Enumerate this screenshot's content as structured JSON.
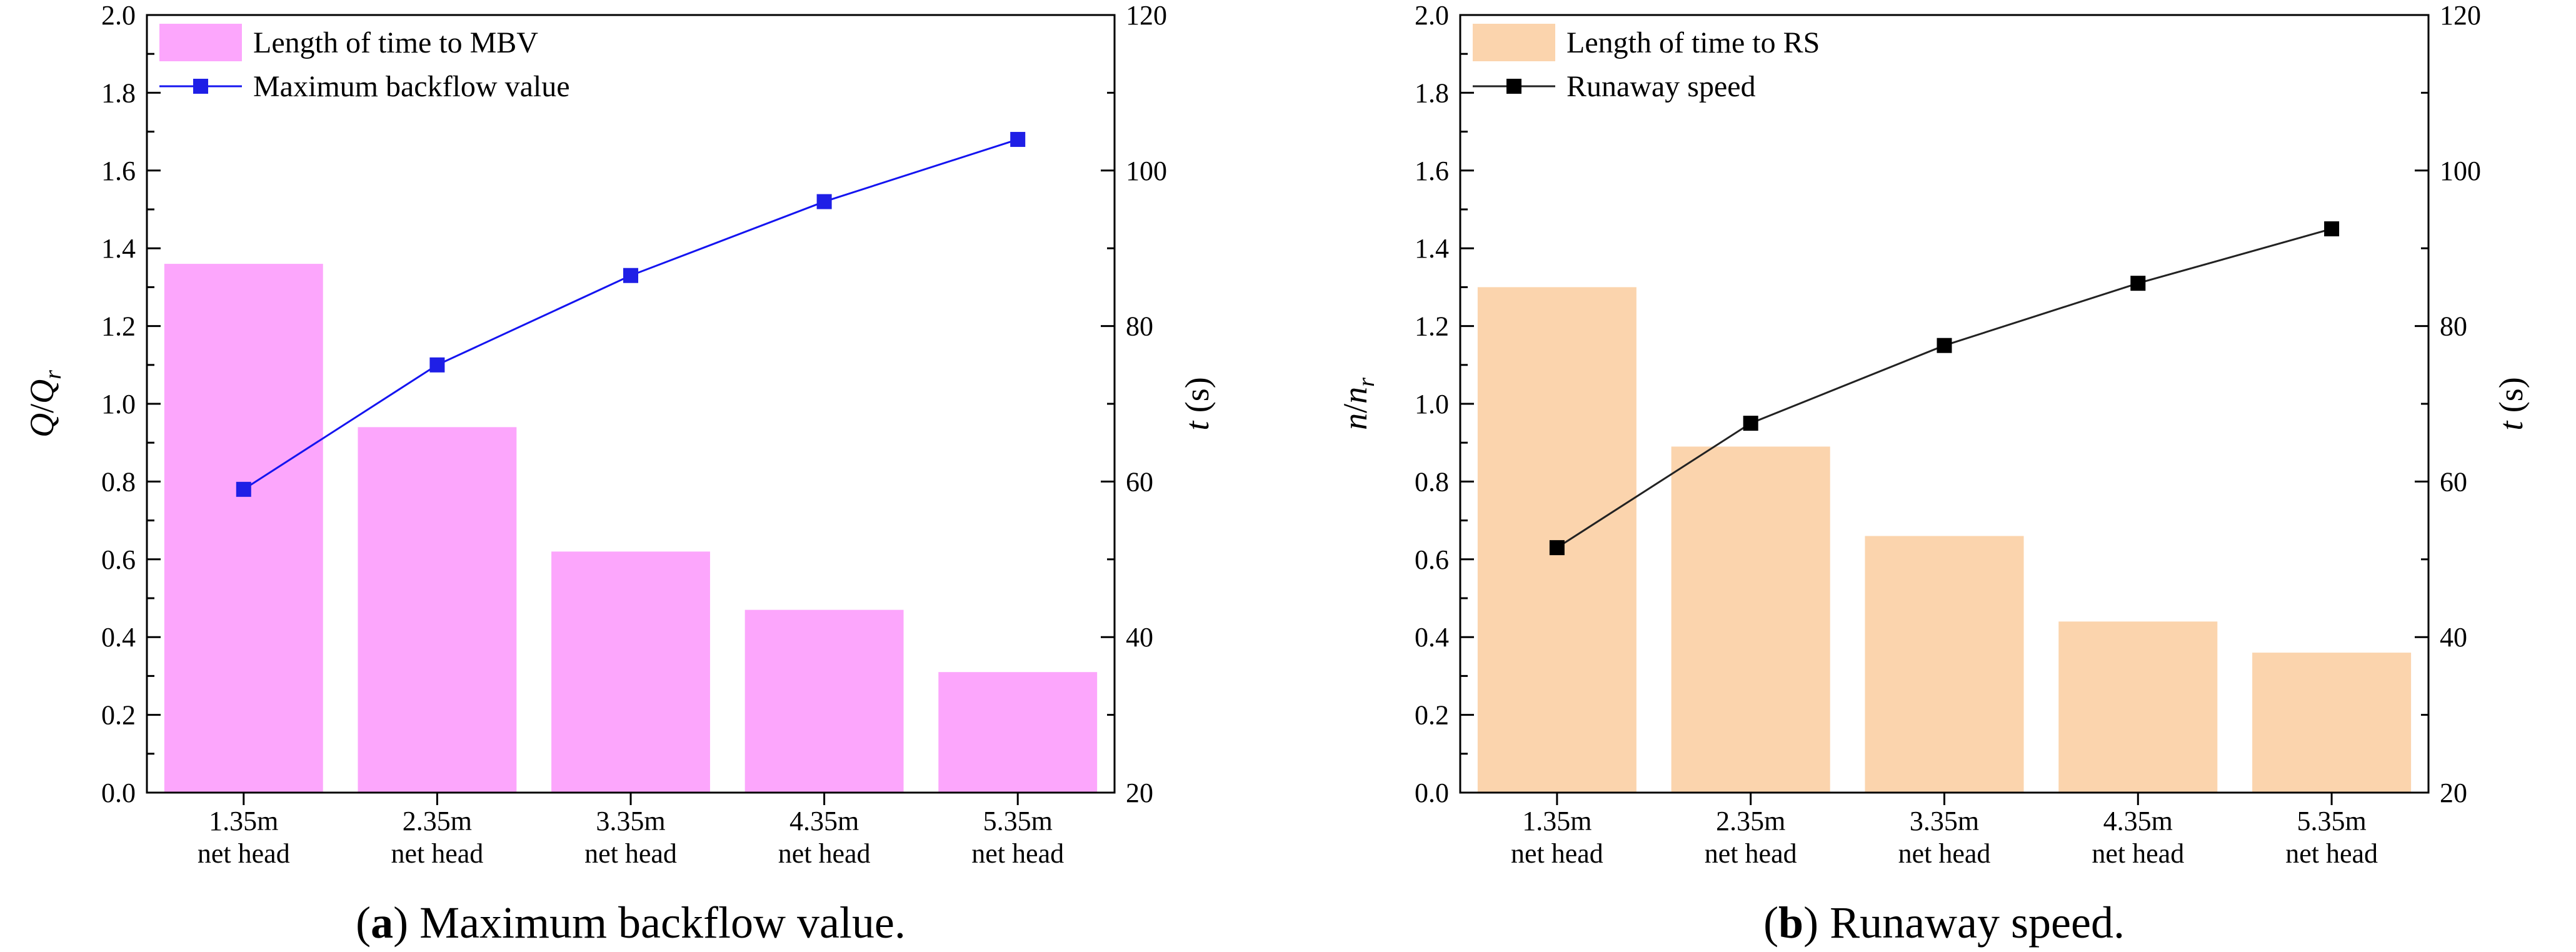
{
  "chart_data": [
    {
      "type": "bar",
      "categories": [
        [
          "1.35m",
          "net head"
        ],
        [
          "2.35m",
          "net head"
        ],
        [
          "3.35m",
          "net head"
        ],
        [
          "4.35m",
          "net head"
        ],
        [
          "5.35m",
          "net head"
        ]
      ],
      "bar_series": {
        "name": "Length of time to MBV",
        "axis": "right",
        "values": [
          88,
          67,
          51,
          43.5,
          35.5
        ],
        "color": "#fca6fc"
      },
      "line_series": {
        "name": "Maximum backflow value",
        "axis": "left",
        "values": [
          0.78,
          1.1,
          1.33,
          1.52,
          1.68
        ],
        "color": "#1414f0",
        "marker_color": "#1f1fe6"
      },
      "left_axis": {
        "label_main": "Q",
        "label_sep": "/",
        "label_base": "Q",
        "label_sub": "r",
        "ylim": [
          0,
          2.0
        ],
        "ticks": [
          "0.0",
          "0.2",
          "0.4",
          "0.6",
          "0.8",
          "1.0",
          "1.2",
          "1.4",
          "1.6",
          "1.8",
          "2.0"
        ]
      },
      "right_axis": {
        "label_italic": "t",
        "label_unit": " (s)",
        "ylim": [
          20,
          120
        ],
        "ticks": [
          "20",
          "40",
          "60",
          "80",
          "100",
          "120"
        ]
      },
      "caption": {
        "open": "(",
        "letter": "a",
        "rest": ") Maximum backflow value."
      }
    },
    {
      "type": "bar",
      "categories": [
        [
          "1.35m",
          "net head"
        ],
        [
          "2.35m",
          "net head"
        ],
        [
          "3.35m",
          "net head"
        ],
        [
          "4.35m",
          "net head"
        ],
        [
          "5.35m",
          "net head"
        ]
      ],
      "bar_series": {
        "name": "Length of time to RS",
        "axis": "right",
        "values": [
          85,
          64.5,
          53,
          42,
          38
        ],
        "color": "#fbd4ad"
      },
      "line_series": {
        "name": "Runaway speed",
        "axis": "left",
        "values": [
          0.63,
          0.95,
          1.15,
          1.31,
          1.45
        ],
        "color": "#222222",
        "marker_color": "#000000"
      },
      "left_axis": {
        "label_main": "n",
        "label_sep": "/",
        "label_base": "n",
        "label_sub": "r",
        "ylim": [
          0,
          2.0
        ],
        "ticks": [
          "0.0",
          "0.2",
          "0.4",
          "0.6",
          "0.8",
          "1.0",
          "1.2",
          "1.4",
          "1.6",
          "1.8",
          "2.0"
        ]
      },
      "right_axis": {
        "label_italic": "t",
        "label_unit": " (s)",
        "ylim": [
          20,
          120
        ],
        "ticks": [
          "20",
          "40",
          "60",
          "80",
          "100",
          "120"
        ]
      },
      "caption": {
        "open": "(",
        "letter": "b",
        "rest": ") Runaway speed."
      }
    }
  ]
}
